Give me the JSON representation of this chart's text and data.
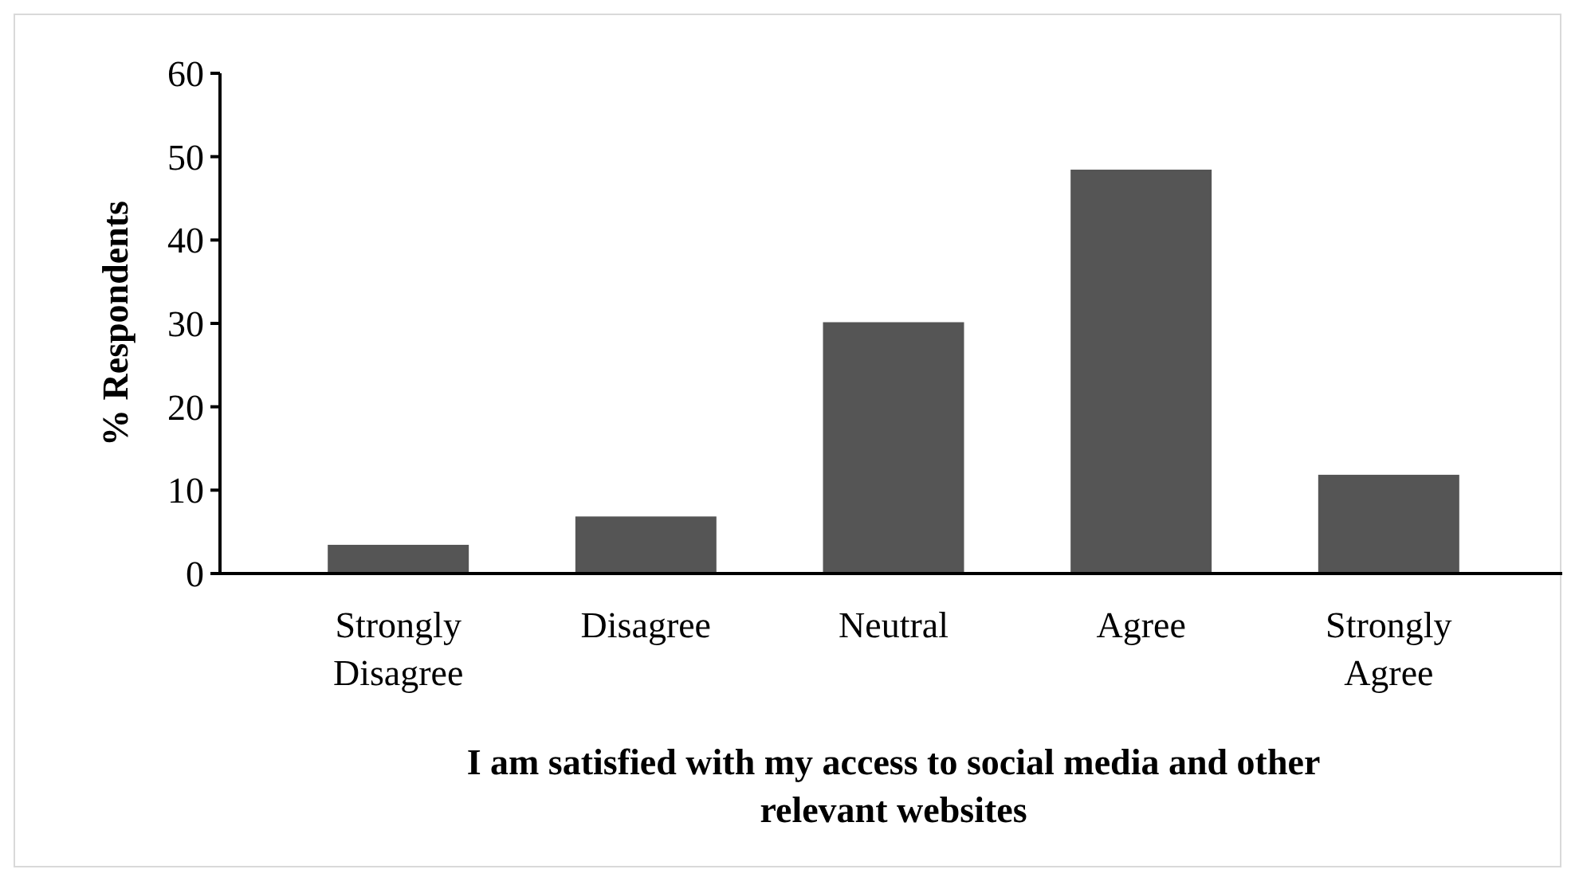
{
  "chart_data": {
    "type": "bar",
    "xlabel": "I am satisfied with my access to social media and other relevant websites",
    "ylabel": "% Respondents",
    "categories": [
      "Strongly Disagree",
      "Disagree",
      "Neutral",
      "Agree",
      "Strongly Agree"
    ],
    "values": [
      3.3,
      6.7,
      30,
      48.3,
      11.7
    ],
    "color": "#555555",
    "ylim": [
      0,
      60
    ],
    "yticks": [
      0,
      10,
      20,
      30,
      40,
      50,
      60
    ],
    "grid": false
  }
}
